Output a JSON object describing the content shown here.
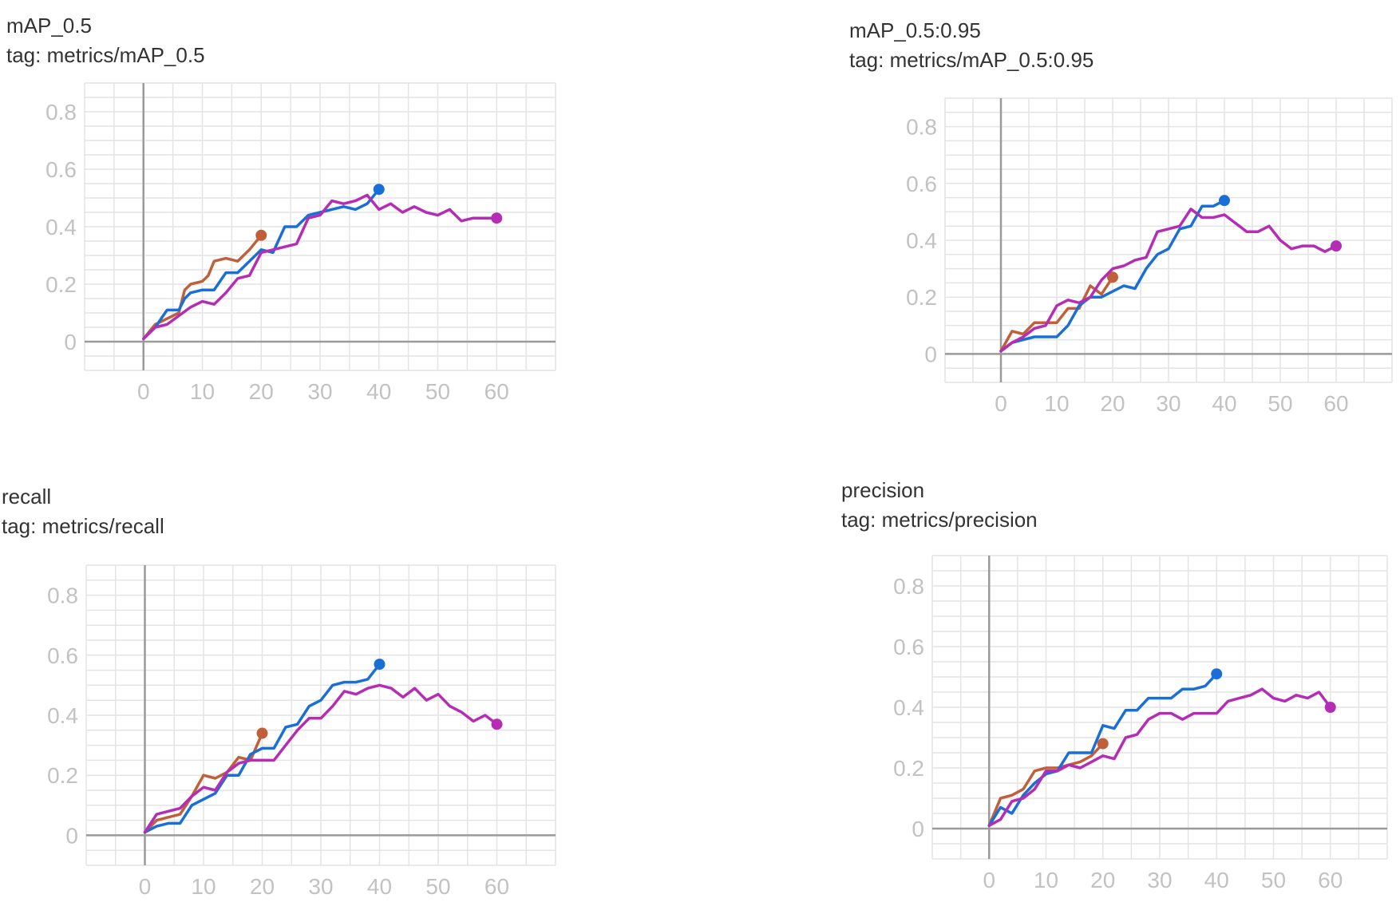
{
  "colors": {
    "grid": "#e4e4e4",
    "axis": "#9a9a9a",
    "tick_label": "#c2c2c2",
    "series": [
      "#c0603a",
      "#1a6fd6",
      "#b52cb5"
    ]
  },
  "panels": [
    {
      "title": "mAP_0.5",
      "tag": "tag: metrics/mAP_0.5"
    },
    {
      "title": "mAP_0.5:0.95",
      "tag": "tag: metrics/mAP_0.5:0.95"
    },
    {
      "title": "recall",
      "tag": "tag: metrics/recall"
    },
    {
      "title": "precision",
      "tag": "tag: metrics/precision"
    }
  ],
  "chart_data": [
    {
      "type": "line",
      "title": "mAP_0.5",
      "xlim": [
        -10,
        70
      ],
      "ylim": [
        -0.1,
        0.9
      ],
      "x_ticks": [
        0,
        10,
        20,
        30,
        40,
        50,
        60
      ],
      "x_tick_labels": [
        "0",
        "10",
        "20",
        "30",
        "40",
        "50",
        "60"
      ],
      "y_ticks": [
        0,
        0.2,
        0.4,
        0.6,
        0.8
      ],
      "y_tick_labels": [
        "0",
        "0.2",
        "0.4",
        "0.6",
        "0.8"
      ],
      "grid": true,
      "series": [
        {
          "x": [
            0,
            2,
            4,
            6,
            7,
            8,
            10,
            11,
            12,
            14,
            16,
            18,
            20
          ],
          "y": [
            0.01,
            0.06,
            0.08,
            0.1,
            0.18,
            0.2,
            0.21,
            0.23,
            0.28,
            0.29,
            0.28,
            0.32,
            0.37
          ]
        },
        {
          "x": [
            0,
            2,
            4,
            6,
            7,
            8,
            10,
            12,
            14,
            16,
            18,
            20,
            22,
            24,
            26,
            28,
            30,
            32,
            34,
            36,
            38,
            40
          ],
          "y": [
            0.01,
            0.05,
            0.11,
            0.11,
            0.15,
            0.17,
            0.18,
            0.18,
            0.24,
            0.24,
            0.28,
            0.32,
            0.31,
            0.4,
            0.4,
            0.44,
            0.45,
            0.46,
            0.47,
            0.46,
            0.48,
            0.53
          ]
        },
        {
          "x": [
            0,
            2,
            4,
            6,
            8,
            10,
            12,
            14,
            16,
            18,
            20,
            22,
            24,
            26,
            28,
            30,
            32,
            34,
            36,
            38,
            40,
            42,
            44,
            46,
            48,
            50,
            52,
            54,
            56,
            58,
            60
          ],
          "y": [
            0.01,
            0.05,
            0.06,
            0.09,
            0.12,
            0.14,
            0.13,
            0.17,
            0.22,
            0.23,
            0.31,
            0.32,
            0.33,
            0.34,
            0.43,
            0.44,
            0.49,
            0.48,
            0.49,
            0.51,
            0.46,
            0.48,
            0.45,
            0.47,
            0.45,
            0.44,
            0.46,
            0.42,
            0.43,
            0.43,
            0.43
          ]
        }
      ]
    },
    {
      "type": "line",
      "title": "mAP_0.5:0.95",
      "xlim": [
        -10,
        70
      ],
      "ylim": [
        -0.1,
        0.9
      ],
      "x_ticks": [
        0,
        10,
        20,
        30,
        40,
        50,
        60
      ],
      "x_tick_labels": [
        "0",
        "10",
        "20",
        "30",
        "40",
        "50",
        "60"
      ],
      "y_ticks": [
        0,
        0.2,
        0.4,
        0.6,
        0.8
      ],
      "y_tick_labels": [
        "0",
        "0.2",
        "0.4",
        "0.6",
        "0.8"
      ],
      "grid": true,
      "series": [
        {
          "x": [
            0,
            2,
            4,
            6,
            8,
            10,
            12,
            14,
            16,
            18,
            20
          ],
          "y": [
            0.01,
            0.08,
            0.07,
            0.11,
            0.11,
            0.11,
            0.16,
            0.16,
            0.24,
            0.21,
            0.27
          ]
        },
        {
          "x": [
            0,
            2,
            4,
            6,
            8,
            10,
            12,
            14,
            16,
            18,
            20,
            22,
            24,
            26,
            28,
            30,
            32,
            34,
            36,
            38,
            40
          ],
          "y": [
            0.01,
            0.04,
            0.05,
            0.06,
            0.06,
            0.06,
            0.1,
            0.17,
            0.2,
            0.2,
            0.22,
            0.24,
            0.23,
            0.3,
            0.35,
            0.37,
            0.44,
            0.45,
            0.52,
            0.52,
            0.54
          ]
        },
        {
          "x": [
            0,
            2,
            4,
            6,
            8,
            10,
            12,
            14,
            16,
            18,
            20,
            22,
            24,
            26,
            28,
            30,
            32,
            34,
            36,
            38,
            40,
            42,
            44,
            46,
            48,
            50,
            52,
            54,
            56,
            58,
            60
          ],
          "y": [
            0.01,
            0.04,
            0.06,
            0.09,
            0.1,
            0.17,
            0.19,
            0.18,
            0.2,
            0.26,
            0.3,
            0.31,
            0.33,
            0.34,
            0.43,
            0.44,
            0.45,
            0.51,
            0.48,
            0.48,
            0.49,
            0.46,
            0.43,
            0.43,
            0.45,
            0.4,
            0.37,
            0.38,
            0.38,
            0.36,
            0.38
          ]
        }
      ]
    },
    {
      "type": "line",
      "title": "recall",
      "xlim": [
        -10,
        70
      ],
      "ylim": [
        -0.1,
        0.9
      ],
      "x_ticks": [
        0,
        10,
        20,
        30,
        40,
        50,
        60
      ],
      "x_tick_labels": [
        "0",
        "10",
        "20",
        "30",
        "40",
        "50",
        "60"
      ],
      "y_ticks": [
        0,
        0.2,
        0.4,
        0.6,
        0.8
      ],
      "y_tick_labels": [
        "0",
        "0.2",
        "0.4",
        "0.6",
        "0.8"
      ],
      "grid": true,
      "series": [
        {
          "x": [
            0,
            2,
            4,
            6,
            8,
            10,
            12,
            14,
            16,
            18,
            20
          ],
          "y": [
            0.01,
            0.05,
            0.06,
            0.07,
            0.13,
            0.2,
            0.19,
            0.21,
            0.26,
            0.25,
            0.34
          ]
        },
        {
          "x": [
            0,
            2,
            4,
            6,
            8,
            10,
            12,
            14,
            16,
            18,
            20,
            22,
            24,
            26,
            28,
            30,
            32,
            34,
            36,
            38,
            40
          ],
          "y": [
            0.01,
            0.03,
            0.04,
            0.04,
            0.1,
            0.12,
            0.14,
            0.2,
            0.2,
            0.27,
            0.29,
            0.29,
            0.36,
            0.37,
            0.43,
            0.45,
            0.5,
            0.51,
            0.51,
            0.52,
            0.57
          ]
        },
        {
          "x": [
            0,
            2,
            4,
            6,
            8,
            10,
            12,
            14,
            16,
            18,
            20,
            22,
            24,
            26,
            28,
            30,
            32,
            34,
            36,
            38,
            40,
            42,
            44,
            46,
            48,
            50,
            52,
            54,
            56,
            58,
            60
          ],
          "y": [
            0.01,
            0.07,
            0.08,
            0.09,
            0.13,
            0.16,
            0.15,
            0.21,
            0.24,
            0.25,
            0.25,
            0.25,
            0.3,
            0.35,
            0.39,
            0.39,
            0.43,
            0.48,
            0.47,
            0.49,
            0.5,
            0.49,
            0.46,
            0.49,
            0.45,
            0.47,
            0.43,
            0.41,
            0.38,
            0.4,
            0.37
          ]
        }
      ]
    },
    {
      "type": "line",
      "title": "precision",
      "xlim": [
        -10,
        70
      ],
      "ylim": [
        -0.1,
        0.9
      ],
      "x_ticks": [
        0,
        10,
        20,
        30,
        40,
        50,
        60
      ],
      "x_tick_labels": [
        "0",
        "10",
        "20",
        "30",
        "40",
        "50",
        "60"
      ],
      "y_ticks": [
        0,
        0.2,
        0.4,
        0.6,
        0.8
      ],
      "y_tick_labels": [
        "0",
        "0.2",
        "0.4",
        "0.6",
        "0.8"
      ],
      "grid": true,
      "series": [
        {
          "x": [
            0,
            2,
            4,
            6,
            8,
            10,
            12,
            14,
            16,
            18,
            20
          ],
          "y": [
            0.01,
            0.1,
            0.11,
            0.13,
            0.19,
            0.2,
            0.2,
            0.21,
            0.22,
            0.24,
            0.28
          ]
        },
        {
          "x": [
            0,
            2,
            4,
            6,
            8,
            10,
            12,
            14,
            16,
            18,
            20,
            22,
            24,
            26,
            28,
            30,
            32,
            34,
            36,
            38,
            40
          ],
          "y": [
            0.01,
            0.07,
            0.05,
            0.11,
            0.15,
            0.18,
            0.19,
            0.25,
            0.25,
            0.25,
            0.34,
            0.33,
            0.39,
            0.39,
            0.43,
            0.43,
            0.43,
            0.46,
            0.46,
            0.47,
            0.51
          ]
        },
        {
          "x": [
            0,
            2,
            4,
            6,
            8,
            10,
            12,
            14,
            16,
            18,
            20,
            22,
            24,
            26,
            28,
            30,
            32,
            34,
            36,
            38,
            40,
            42,
            44,
            46,
            48,
            50,
            52,
            54,
            56,
            58,
            60
          ],
          "y": [
            0.01,
            0.03,
            0.09,
            0.1,
            0.13,
            0.19,
            0.19,
            0.21,
            0.2,
            0.22,
            0.24,
            0.23,
            0.3,
            0.31,
            0.36,
            0.38,
            0.38,
            0.36,
            0.38,
            0.38,
            0.38,
            0.42,
            0.43,
            0.44,
            0.46,
            0.43,
            0.42,
            0.44,
            0.43,
            0.45,
            0.4
          ]
        }
      ]
    }
  ]
}
